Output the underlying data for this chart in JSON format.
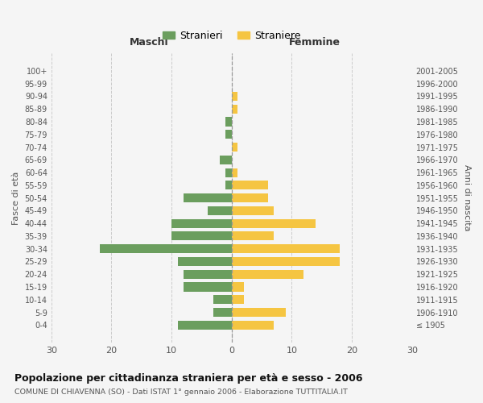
{
  "age_groups": [
    "100+",
    "95-99",
    "90-94",
    "85-89",
    "80-84",
    "75-79",
    "70-74",
    "65-69",
    "60-64",
    "55-59",
    "50-54",
    "45-49",
    "40-44",
    "35-39",
    "30-34",
    "25-29",
    "20-24",
    "15-19",
    "10-14",
    "5-9",
    "0-4"
  ],
  "birth_years": [
    "≤ 1905",
    "1906-1910",
    "1911-1915",
    "1916-1920",
    "1921-1925",
    "1926-1930",
    "1931-1935",
    "1936-1940",
    "1941-1945",
    "1946-1950",
    "1951-1955",
    "1956-1960",
    "1961-1965",
    "1966-1970",
    "1971-1975",
    "1976-1980",
    "1981-1985",
    "1986-1990",
    "1991-1995",
    "1996-2000",
    "2001-2005"
  ],
  "maschi": [
    0,
    0,
    0,
    0,
    1,
    1,
    0,
    2,
    1,
    1,
    8,
    4,
    10,
    10,
    22,
    9,
    8,
    8,
    3,
    3,
    9
  ],
  "femmine": [
    0,
    0,
    1,
    1,
    0,
    0,
    1,
    0,
    1,
    6,
    6,
    7,
    14,
    7,
    18,
    18,
    12,
    2,
    2,
    9,
    7
  ],
  "maschi_color": "#6b9e5e",
  "femmine_color": "#f5c542",
  "title": "Popolazione per cittadinanza straniera per età e sesso - 2006",
  "subtitle": "COMUNE DI CHIAVENNA (SO) - Dati ISTAT 1° gennaio 2006 - Elaborazione TUTTITALIA.IT",
  "xlabel_left": "Maschi",
  "xlabel_right": "Femmine",
  "ylabel_left": "Fasce di età",
  "ylabel_right": "Anni di nascita",
  "legend_maschi": "Stranieri",
  "legend_femmine": "Straniere",
  "xlim": 30,
  "background_color": "#f5f5f5",
  "plot_background": "#f5f5f5"
}
